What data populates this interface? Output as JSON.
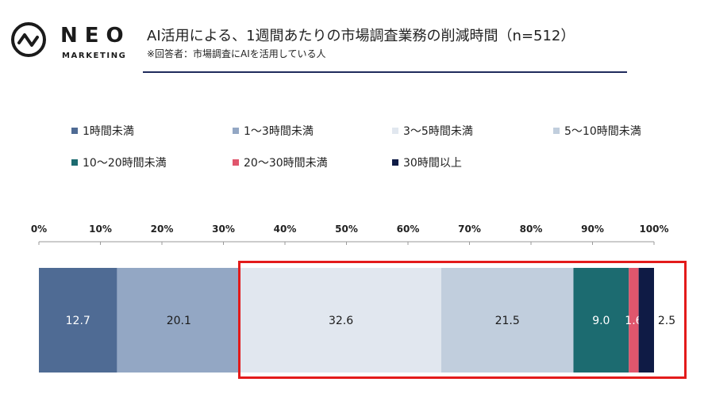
{
  "logo": {
    "name": "NEO",
    "tagline": "MARKETING",
    "icon": "pulse-circle-icon"
  },
  "header": {
    "title": "AI活用による、1週間あたりの市場調査業務の削減時間（n=512）",
    "note": "※回答者：市場調査にAIを活用している人"
  },
  "legend": [
    {
      "label": "1時間未満",
      "color": "#4f6b94"
    },
    {
      "label": "1〜3時間未満",
      "color": "#93a7c4"
    },
    {
      "label": "3〜5時間未満",
      "color": "#e1e7ef"
    },
    {
      "label": "5〜10時間未満",
      "color": "#c1cedd"
    },
    {
      "label": "10〜20時間未満",
      "color": "#1c6b70"
    },
    {
      "label": "20〜30時間未満",
      "color": "#e0566d"
    },
    {
      "label": "30時間以上",
      "color": "#0f1b45"
    }
  ],
  "chart_data": {
    "type": "bar",
    "orientation": "horizontal-stacked-100",
    "categories": [
      ""
    ],
    "series": [
      {
        "name": "1時間未満",
        "values": [
          12.7
        ],
        "label": "12.7",
        "color": "#4f6b94",
        "label_color": "#ffffff"
      },
      {
        "name": "1〜3時間未満",
        "values": [
          20.1
        ],
        "label": "20.1",
        "color": "#93a7c4",
        "label_color": "#1b1b1b"
      },
      {
        "name": "3〜5時間未満",
        "values": [
          32.6
        ],
        "label": "32.6",
        "color": "#e1e7ef",
        "label_color": "#1b1b1b"
      },
      {
        "name": "5〜10時間未満",
        "values": [
          21.5
        ],
        "label": "21.5",
        "color": "#c1cedd",
        "label_color": "#1b1b1b"
      },
      {
        "name": "10〜20時間未満",
        "values": [
          9.0
        ],
        "label": "9.0",
        "color": "#1c6b70",
        "label_color": "#ffffff"
      },
      {
        "name": "20〜30時間未満",
        "values": [
          1.6
        ],
        "label": "1.6",
        "color": "#e0566d",
        "label_color": "#ffffff"
      },
      {
        "name": "30時間以上",
        "values": [
          2.5
        ],
        "label": "2.5",
        "color": "#0f1b45",
        "label_color": "#1b1b1b"
      }
    ],
    "xlim": [
      0,
      100
    ],
    "x_ticks": [
      "0%",
      "10%",
      "20%",
      "30%",
      "40%",
      "50%",
      "60%",
      "70%",
      "80%",
      "90%",
      "100%"
    ],
    "legend_position": "top",
    "highlight": {
      "from_series": "3〜5時間未満",
      "to_series": "30時間以上",
      "color": "#e31b1b"
    }
  }
}
